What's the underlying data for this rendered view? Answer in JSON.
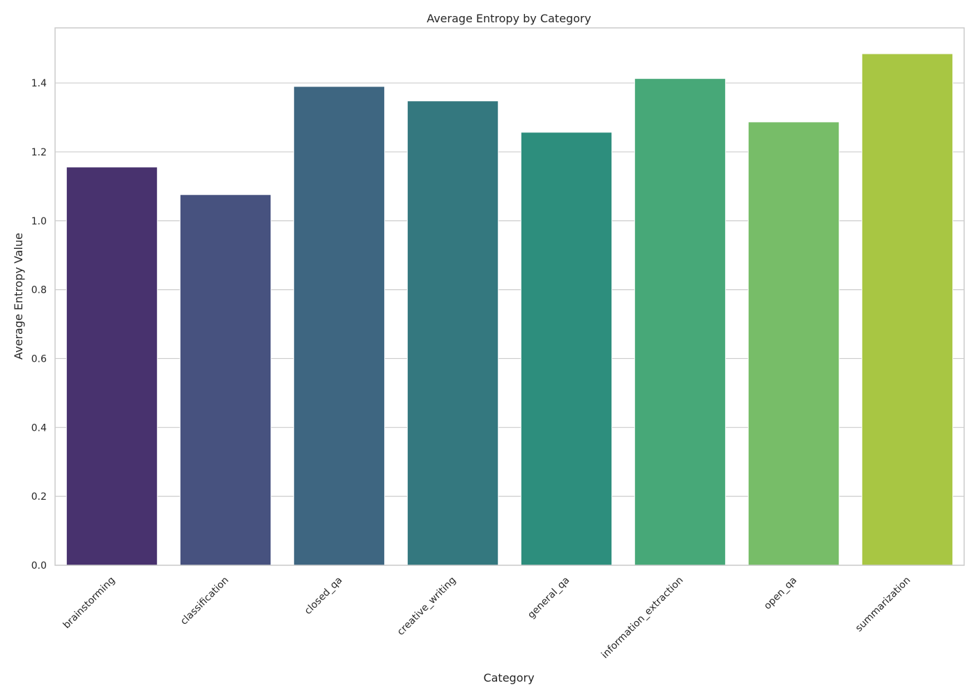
{
  "chart_data": {
    "type": "bar",
    "title": "Average Entropy by Category",
    "xlabel": "Category",
    "ylabel": "Average Entropy Value",
    "categories": [
      "brainstorming",
      "classification",
      "closed_qa",
      "creative_writing",
      "general_qa",
      "information_extraction",
      "open_qa",
      "summarization"
    ],
    "values": [
      1.156,
      1.076,
      1.39,
      1.348,
      1.257,
      1.413,
      1.287,
      1.485
    ],
    "colors": [
      "#48326e",
      "#47527f",
      "#3e6681",
      "#34787f",
      "#2d8e7d",
      "#47a878",
      "#77bd68",
      "#a8c643"
    ],
    "ylim": [
      0,
      1.56
    ],
    "yticks": [
      0.0,
      0.2,
      0.4,
      0.6,
      0.8,
      1.0,
      1.2,
      1.4
    ],
    "grid": true,
    "legend": "none"
  }
}
